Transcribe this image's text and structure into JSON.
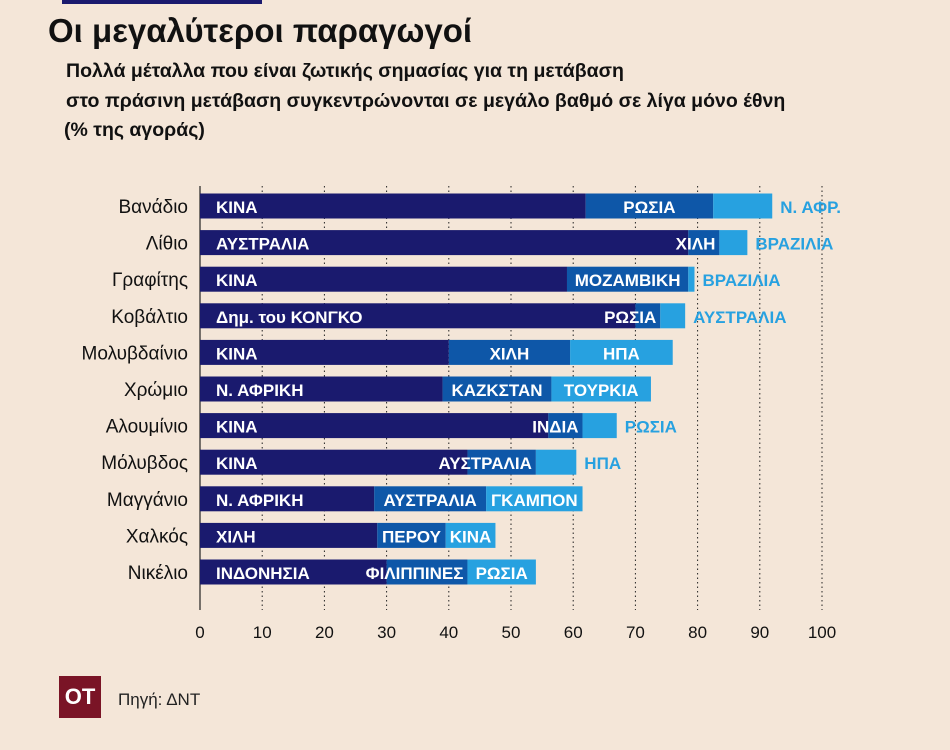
{
  "header": {
    "title": "Οι μεγαλύτεροι παραγωγοί",
    "subtitle_line1": "Πολλά μέταλλα που είναι ζωτικής σημασίας για τη μετάβαση",
    "subtitle_line2": "στο πράσινη μετάβαση συγκεντρώνονται σε μεγάλο βαθμό σε λίγα μόνο έθνη",
    "subtitle_line3": "(% της αγοράς)"
  },
  "footer": {
    "logo_text": "ΟΤ",
    "source": "Πηγή: ΔΝΤ"
  },
  "colors": {
    "background": "#f4e6d8",
    "first": "#1a1a6e",
    "second": "#0e57a8",
    "third": "#27a1e0",
    "third_label_outside": "#27a1e0",
    "axis": "#222222",
    "logo_bg": "#7a1426",
    "top_rule": "#1a1a6e"
  },
  "chart_data": {
    "type": "bar",
    "orientation": "horizontal",
    "stacked": true,
    "xlim": [
      0,
      100
    ],
    "xticks": [
      0,
      10,
      20,
      30,
      40,
      50,
      60,
      70,
      80,
      90,
      100
    ],
    "categories": [
      "Βανάδιο",
      "Λίθιο",
      "Γραφίτης",
      "Κοβάλτιο",
      "Μολυβδαίνιο",
      "Χρώμιο",
      "Αλουμίνιο",
      "Μόλυβδος",
      "Μαγγάνιο",
      "Χαλκός",
      "Νικέλιο"
    ],
    "rows": [
      {
        "category": "Βανάδιο",
        "segments": [
          {
            "label": "ΚΙΝΑ",
            "value": 62
          },
          {
            "label": "ΡΩΣΙΑ",
            "value": 20.5
          },
          {
            "label": "Ν. ΑΦΡ.",
            "value": 9.5
          }
        ]
      },
      {
        "category": "Λίθιο",
        "segments": [
          {
            "label": "ΑΥΣΤΡΑΛΙΑ",
            "value": 78.5
          },
          {
            "label": "ΧΙΛΗ",
            "value": 5
          },
          {
            "label": "ΒΡΑΖΙΛΙΑ",
            "value": 4.5
          }
        ]
      },
      {
        "category": "Γραφίτης",
        "segments": [
          {
            "label": "ΚΙΝΑ",
            "value": 59
          },
          {
            "label": "ΜΟΖΑΜΒΙΚΗ",
            "value": 19.5
          },
          {
            "label": "ΒΡΑΖΙΛΙΑ",
            "value": 1
          }
        ]
      },
      {
        "category": "Κοβάλτιο",
        "segments": [
          {
            "label": "Δημ. του ΚΟΝΓΚΟ",
            "value": 70
          },
          {
            "label": "ΡΩΣΙΑ",
            "value": 4
          },
          {
            "label": "ΑΥΣΤΡΑΛΙΑ",
            "value": 4
          }
        ]
      },
      {
        "category": "Μολυβδαίνιο",
        "segments": [
          {
            "label": "ΚΙΝΑ",
            "value": 40
          },
          {
            "label": "ΧΙΛΗ",
            "value": 19.5
          },
          {
            "label": "ΗΠΑ",
            "value": 16.5
          }
        ]
      },
      {
        "category": "Χρώμιο",
        "segments": [
          {
            "label": "Ν. ΑΦΡΙΚΗ",
            "value": 39
          },
          {
            "label": "ΚΑΖΚΣΤΑΝ",
            "value": 17.5
          },
          {
            "label": "ΤΟΥΡΚΙΑ",
            "value": 16
          }
        ]
      },
      {
        "category": "Αλουμίνιο",
        "segments": [
          {
            "label": "ΚΙΝΑ",
            "value": 56
          },
          {
            "label": "ΙΝΔΙΑ",
            "value": 5.5
          },
          {
            "label": "ΡΩΣΙΑ",
            "value": 5.5
          }
        ]
      },
      {
        "category": "Μόλυβδος",
        "segments": [
          {
            "label": "ΚΙΝΑ",
            "value": 43
          },
          {
            "label": "ΑΥΣΤΡΑΛΙΑ",
            "value": 11
          },
          {
            "label": "ΗΠΑ",
            "value": 6.5
          }
        ]
      },
      {
        "category": "Μαγγάνιο",
        "segments": [
          {
            "label": "Ν. ΑΦΡΙΚΗ",
            "value": 28
          },
          {
            "label": "ΑΥΣΤΡΑΛΙΑ",
            "value": 18
          },
          {
            "label": "ΓΚΑΜΠΟΝ",
            "value": 15.5
          }
        ]
      },
      {
        "category": "Χαλκός",
        "segments": [
          {
            "label": "ΧΙΛΗ",
            "value": 28.5
          },
          {
            "label": "ΠΕΡΟΥ",
            "value": 11
          },
          {
            "label": "ΚΙΝΑ",
            "value": 8
          }
        ]
      },
      {
        "category": "Νικέλιο",
        "segments": [
          {
            "label": "ΙΝΔΟΝΗΣΙΑ",
            "value": 30
          },
          {
            "label": "ΦΙΛΙΠΠΙΝΕΣ",
            "value": 13
          },
          {
            "label": "ΡΩΣΙΑ",
            "value": 11
          }
        ]
      }
    ]
  }
}
